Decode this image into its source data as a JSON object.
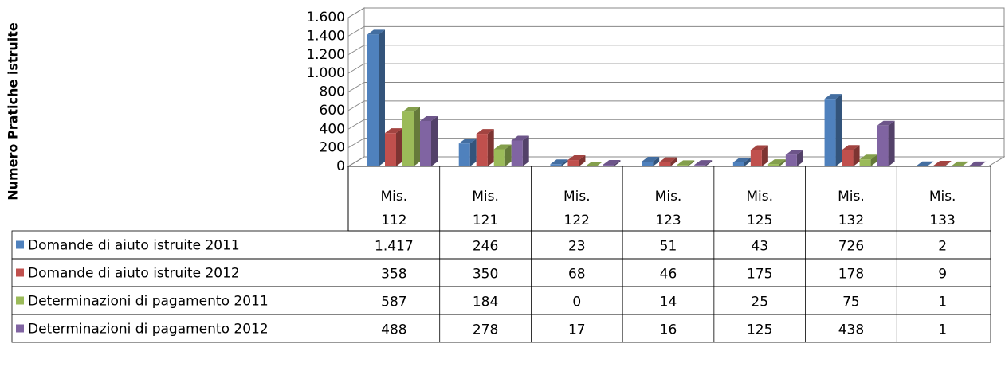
{
  "chart_data": {
    "type": "bar3d",
    "y_axis_label": "Numero Pratiche istruite",
    "categories": [
      "Mis. 112",
      "Mis. 121",
      "Mis. 122",
      "Mis. 123",
      "Mis. 125",
      "Mis. 132",
      "Mis. 133"
    ],
    "series": [
      {
        "name": "Domande di aiuto istruite 2011",
        "color": "#4f81bd",
        "values": [
          1417,
          246,
          23,
          51,
          43,
          726,
          2
        ],
        "value_labels": [
          "1.417",
          "246",
          "23",
          "51",
          "43",
          "726",
          "2"
        ]
      },
      {
        "name": "Domande di aiuto istruite 2012",
        "color": "#c0504d",
        "values": [
          358,
          350,
          68,
          46,
          175,
          178,
          9
        ]
      },
      {
        "name": "Determinazioni di pagamento 2011",
        "color": "#9bbb59",
        "values": [
          587,
          184,
          0,
          14,
          25,
          75,
          1
        ]
      },
      {
        "name": "Determinazioni di pagamento 2012",
        "color": "#8064a2",
        "values": [
          488,
          278,
          17,
          16,
          125,
          438,
          1
        ]
      }
    ],
    "ylim": [
      0,
      1600
    ],
    "yticks": [
      0,
      200,
      400,
      600,
      800,
      {
        "value": 1000,
        "label": "1.000"
      },
      {
        "value": 1200,
        "label": "1.200"
      },
      {
        "value": 1400,
        "label": "1.400"
      },
      {
        "value": 1600,
        "label": "1.600"
      }
    ],
    "grid": true,
    "legend": "table"
  }
}
